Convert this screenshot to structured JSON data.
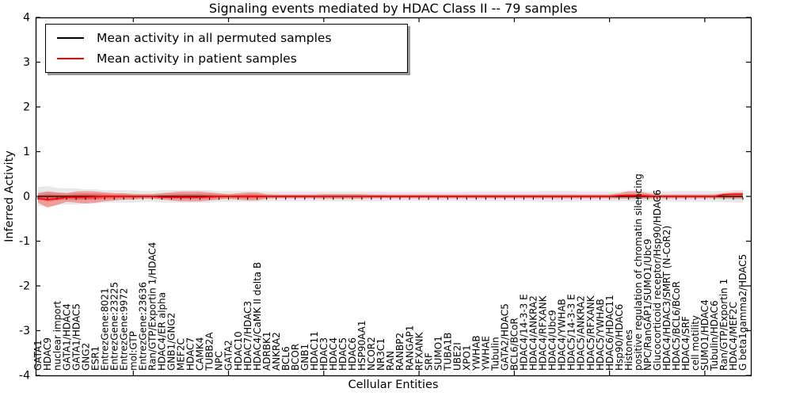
{
  "chart_data": {
    "type": "line",
    "title": "Signaling events mediated by HDAC Class II -- 79 samples",
    "xlabel": "Cellular Entities",
    "ylabel": "Inferred Activity",
    "ylim": [
      -4,
      4
    ],
    "yticks": [
      4,
      3,
      2,
      1,
      0,
      -1,
      -2,
      -3,
      -4
    ],
    "x_major_tick_every": 10,
    "grid": false,
    "legend_position": "upper left",
    "categories": [
      "GATA1",
      "HDAC9",
      "nuclear import",
      "GATA1/HDAC4",
      "GATA1/HDAC5",
      "GNG2",
      "ESR1",
      "EntrezGene:8021",
      "EntrezGene:23225",
      "EntrezGene:9972",
      "mol:GTP",
      "EntrezGene:23636",
      "Ran/GTP/Exportin 1/HDAC4",
      "HDAC4/ER alpha",
      "GNB1/GNG2",
      "MEF2C",
      "HDAC7",
      "CAMK4",
      "TUBB2A",
      "NPC",
      "GATA2",
      "HDAC10",
      "HDAC7/HDAC3",
      "HDAC4/CaMK II delta B",
      "ADRBK1",
      "ANKRA2",
      "BCL6",
      "BCOR",
      "GNB1",
      "HDAC11",
      "HDAC3",
      "HDAC4",
      "HDAC5",
      "HDAC6",
      "HSP90AA1",
      "NCOR2",
      "NR3C1",
      "RAN",
      "RANBP2",
      "RANGAP1",
      "RFXANK",
      "SRF",
      "SUMO1",
      "TUBA1B",
      "UBE2I",
      "XPO1",
      "YWHAB",
      "YWHAE",
      "Tubulin",
      "GATA2/HDAC5",
      "BCL6/BCoR",
      "HDAC4/14-3-3 E",
      "HDAC4/ANKRA2",
      "HDAC4/RFXANK",
      "HDAC4/Ubc9",
      "HDAC4/YWHAB",
      "HDAC5/14-3-3 E",
      "HDAC5/ANKRA2",
      "HDAC5/RFXANK",
      "HDAC5/YWHAB",
      "HDAC6/HDAC11",
      "Hsp90/HDAC6",
      "Histones",
      "positive regulation of chromatin silencing",
      "NPC/RanGAP1/SUMO1/Ubc9",
      "Glucocorticoid receptor/Hsp90/HDAC6",
      "HDAC4/HDAC3/SMRT (N-CoR2)",
      "HDAC5/BCL6/BCoR",
      "HDAC4/SRF",
      "cell motility",
      "SUMO1/HDAC4",
      "Tubulin/HDAC6",
      "Ran/GTP/Exportin 1",
      "HDAC4/MEF2C",
      "G beta1gamma2/HDAC5"
    ],
    "series": [
      {
        "name": "Mean activity in all permuted samples",
        "color": "#000000",
        "values": [
          0,
          0,
          0,
          0,
          0,
          0,
          0,
          0,
          0,
          0,
          0,
          0,
          0,
          0,
          0,
          0,
          0,
          0,
          0,
          0,
          0,
          0,
          0,
          0,
          0,
          0,
          0,
          0,
          0,
          0,
          0,
          0,
          0,
          0,
          0,
          0,
          0,
          0,
          0,
          0,
          0,
          0,
          0,
          0,
          0,
          0,
          0,
          0,
          0,
          0,
          0,
          0,
          0,
          0,
          0,
          0,
          0,
          0,
          0,
          0,
          0,
          0,
          0,
          0,
          0,
          0,
          0,
          0,
          0,
          0,
          0,
          0,
          0,
          0,
          0
        ]
      },
      {
        "name": "Mean activity in patient samples",
        "color": "#ff0000",
        "values": [
          -0.04,
          -0.07,
          -0.05,
          -0.02,
          -0.02,
          -0.02,
          -0.01,
          0,
          0,
          0,
          0,
          0,
          0,
          -0.02,
          -0.02,
          -0.02,
          -0.02,
          -0.02,
          -0.01,
          0,
          0,
          0,
          0,
          0,
          0,
          0,
          0,
          0,
          0,
          0,
          0,
          0,
          0,
          0,
          0,
          0,
          0,
          0,
          0,
          0,
          0,
          0,
          0,
          0,
          0,
          0,
          0,
          0,
          0,
          0,
          0,
          0,
          0,
          0,
          0,
          0,
          0,
          0,
          0,
          0,
          0,
          0.02,
          0.02,
          0.02,
          0.01,
          0,
          0,
          0,
          0,
          0,
          0,
          0,
          0.04,
          0.05,
          0.05
        ]
      }
    ],
    "bands": [
      {
        "name": "permuted-range",
        "color": "rgba(0,0,0,0.09)",
        "upper": [
          0.21,
          0.23,
          0.19,
          0.18,
          0.18,
          0.16,
          0.16,
          0.14,
          0.14,
          0.14,
          0.14,
          0.12,
          0.12,
          0.14,
          0.14,
          0.14,
          0.14,
          0.14,
          0.14,
          0.12,
          0.12,
          0.12,
          0.12,
          0.12,
          0.11,
          0.11,
          0.11,
          0.11,
          0.11,
          0.11,
          0.11,
          0.11,
          0.11,
          0.11,
          0.11,
          0.11,
          0.11,
          0.1,
          0.1,
          0.1,
          0.1,
          0.1,
          0.1,
          0.1,
          0.1,
          0.11,
          0.11,
          0.11,
          0.11,
          0.11,
          0.11,
          0.11,
          0.11,
          0.12,
          0.12,
          0.12,
          0.12,
          0.11,
          0.11,
          0.11,
          0.11,
          0.11,
          0.11,
          0.11,
          0.11,
          0.11,
          0.11,
          0.12,
          0.12,
          0.12,
          0.12,
          0.12,
          0.12,
          0.14,
          0.14
        ],
        "lower": [
          -0.21,
          -0.23,
          -0.19,
          -0.18,
          -0.18,
          -0.16,
          -0.16,
          -0.14,
          -0.14,
          -0.14,
          -0.14,
          -0.12,
          -0.12,
          -0.14,
          -0.14,
          -0.14,
          -0.14,
          -0.14,
          -0.14,
          -0.12,
          -0.12,
          -0.12,
          -0.12,
          -0.12,
          -0.11,
          -0.11,
          -0.11,
          -0.11,
          -0.11,
          -0.11,
          -0.11,
          -0.11,
          -0.11,
          -0.11,
          -0.11,
          -0.11,
          -0.11,
          -0.1,
          -0.1,
          -0.1,
          -0.1,
          -0.1,
          -0.1,
          -0.1,
          -0.1,
          -0.11,
          -0.11,
          -0.11,
          -0.11,
          -0.11,
          -0.11,
          -0.11,
          -0.11,
          -0.12,
          -0.12,
          -0.12,
          -0.12,
          -0.11,
          -0.11,
          -0.11,
          -0.11,
          -0.11,
          -0.11,
          -0.11,
          -0.11,
          -0.11,
          -0.11,
          -0.12,
          -0.12,
          -0.12,
          -0.12,
          -0.12,
          -0.12,
          -0.14,
          -0.14
        ]
      },
      {
        "name": "patient-range",
        "color": "rgba(255,0,0,0.32)",
        "upper": [
          0.07,
          0.11,
          0.09,
          0.07,
          0.11,
          0.12,
          0.11,
          0.09,
          0.07,
          0.07,
          0.05,
          0.05,
          0.05,
          0.07,
          0.09,
          0.11,
          0.11,
          0.11,
          0.09,
          0.07,
          0.05,
          0.07,
          0.09,
          0.09,
          0.05,
          0.04,
          0.04,
          0.04,
          0.04,
          0.04,
          0.05,
          0.05,
          0.05,
          0.05,
          0.05,
          0.04,
          0.04,
          0.04,
          0.04,
          0.04,
          0.04,
          0.04,
          0.04,
          0.04,
          0.04,
          0.04,
          0.04,
          0.04,
          0.04,
          0.04,
          0.04,
          0.04,
          0.04,
          0.04,
          0.04,
          0.04,
          0.04,
          0.04,
          0.04,
          0.04,
          0.04,
          0.07,
          0.12,
          0.12,
          0.07,
          0.04,
          0.04,
          0.04,
          0.04,
          0.04,
          0.04,
          0.04,
          0.07,
          0.09,
          0.09
        ],
        "lower": [
          -0.14,
          -0.25,
          -0.19,
          -0.12,
          -0.14,
          -0.16,
          -0.14,
          -0.11,
          -0.09,
          -0.07,
          -0.07,
          -0.05,
          -0.05,
          -0.07,
          -0.09,
          -0.11,
          -0.11,
          -0.11,
          -0.09,
          -0.07,
          -0.05,
          -0.07,
          -0.09,
          -0.09,
          -0.05,
          -0.04,
          -0.04,
          -0.04,
          -0.04,
          -0.04,
          -0.05,
          -0.05,
          -0.05,
          -0.05,
          -0.05,
          -0.04,
          -0.04,
          -0.04,
          -0.04,
          -0.04,
          -0.04,
          -0.04,
          -0.04,
          -0.04,
          -0.04,
          -0.04,
          -0.04,
          -0.04,
          -0.04,
          -0.04,
          -0.04,
          -0.04,
          -0.04,
          -0.04,
          -0.04,
          -0.04,
          -0.04,
          -0.04,
          -0.04,
          -0.04,
          -0.04,
          -0.05,
          -0.05,
          -0.05,
          -0.05,
          -0.04,
          -0.04,
          -0.04,
          -0.04,
          -0.04,
          -0.04,
          -0.04,
          -0.05,
          -0.05,
          -0.05
        ]
      }
    ]
  }
}
